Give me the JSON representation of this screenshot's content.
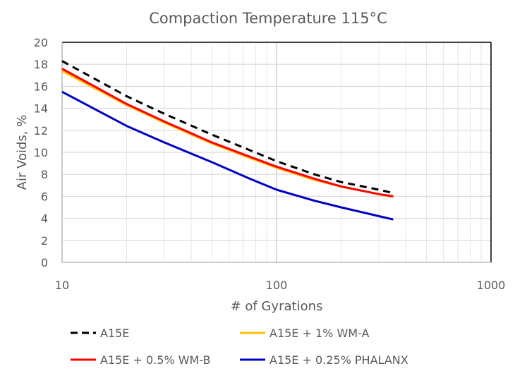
{
  "chart_data": {
    "type": "line",
    "title": "Compaction Temperature 115°C",
    "xlabel": "# of Gyrations",
    "ylabel": "Air Voids, %",
    "xscale": "log",
    "xlim": [
      10,
      1000
    ],
    "ylim": [
      0,
      20
    ],
    "xticks": [
      "10",
      "100",
      "1000"
    ],
    "yticks": [
      "0",
      "2",
      "4",
      "6",
      "8",
      "10",
      "12",
      "14",
      "16",
      "18",
      "20"
    ],
    "grid": true,
    "legend_position": "bottom",
    "x": [
      10,
      20,
      30,
      50,
      75,
      100,
      150,
      200,
      300,
      350
    ],
    "series": [
      {
        "name": "A15E",
        "color": "#000000",
        "dash": true,
        "values": [
          18.3,
          15.1,
          13.5,
          11.6,
          10.2,
          9.2,
          8.0,
          7.3,
          6.6,
          6.3
        ]
      },
      {
        "name": "A15E + 1% WM-A",
        "color": "#FFC000",
        "dash": false,
        "values": [
          17.4,
          14.3,
          12.7,
          10.8,
          9.5,
          8.6,
          7.5,
          6.9,
          6.2,
          5.95
        ]
      },
      {
        "name": "A15E + 0.5% WM-B",
        "color": "#FF0000",
        "dash": false,
        "values": [
          17.6,
          14.4,
          12.8,
          10.9,
          9.6,
          8.7,
          7.6,
          6.9,
          6.2,
          6.0
        ]
      },
      {
        "name": "A15E + 0.25% PHALANX",
        "color": "#0000C0",
        "dash": false,
        "values": [
          15.5,
          12.4,
          10.9,
          9.1,
          7.6,
          6.6,
          5.6,
          5.0,
          4.2,
          3.9
        ]
      }
    ]
  }
}
